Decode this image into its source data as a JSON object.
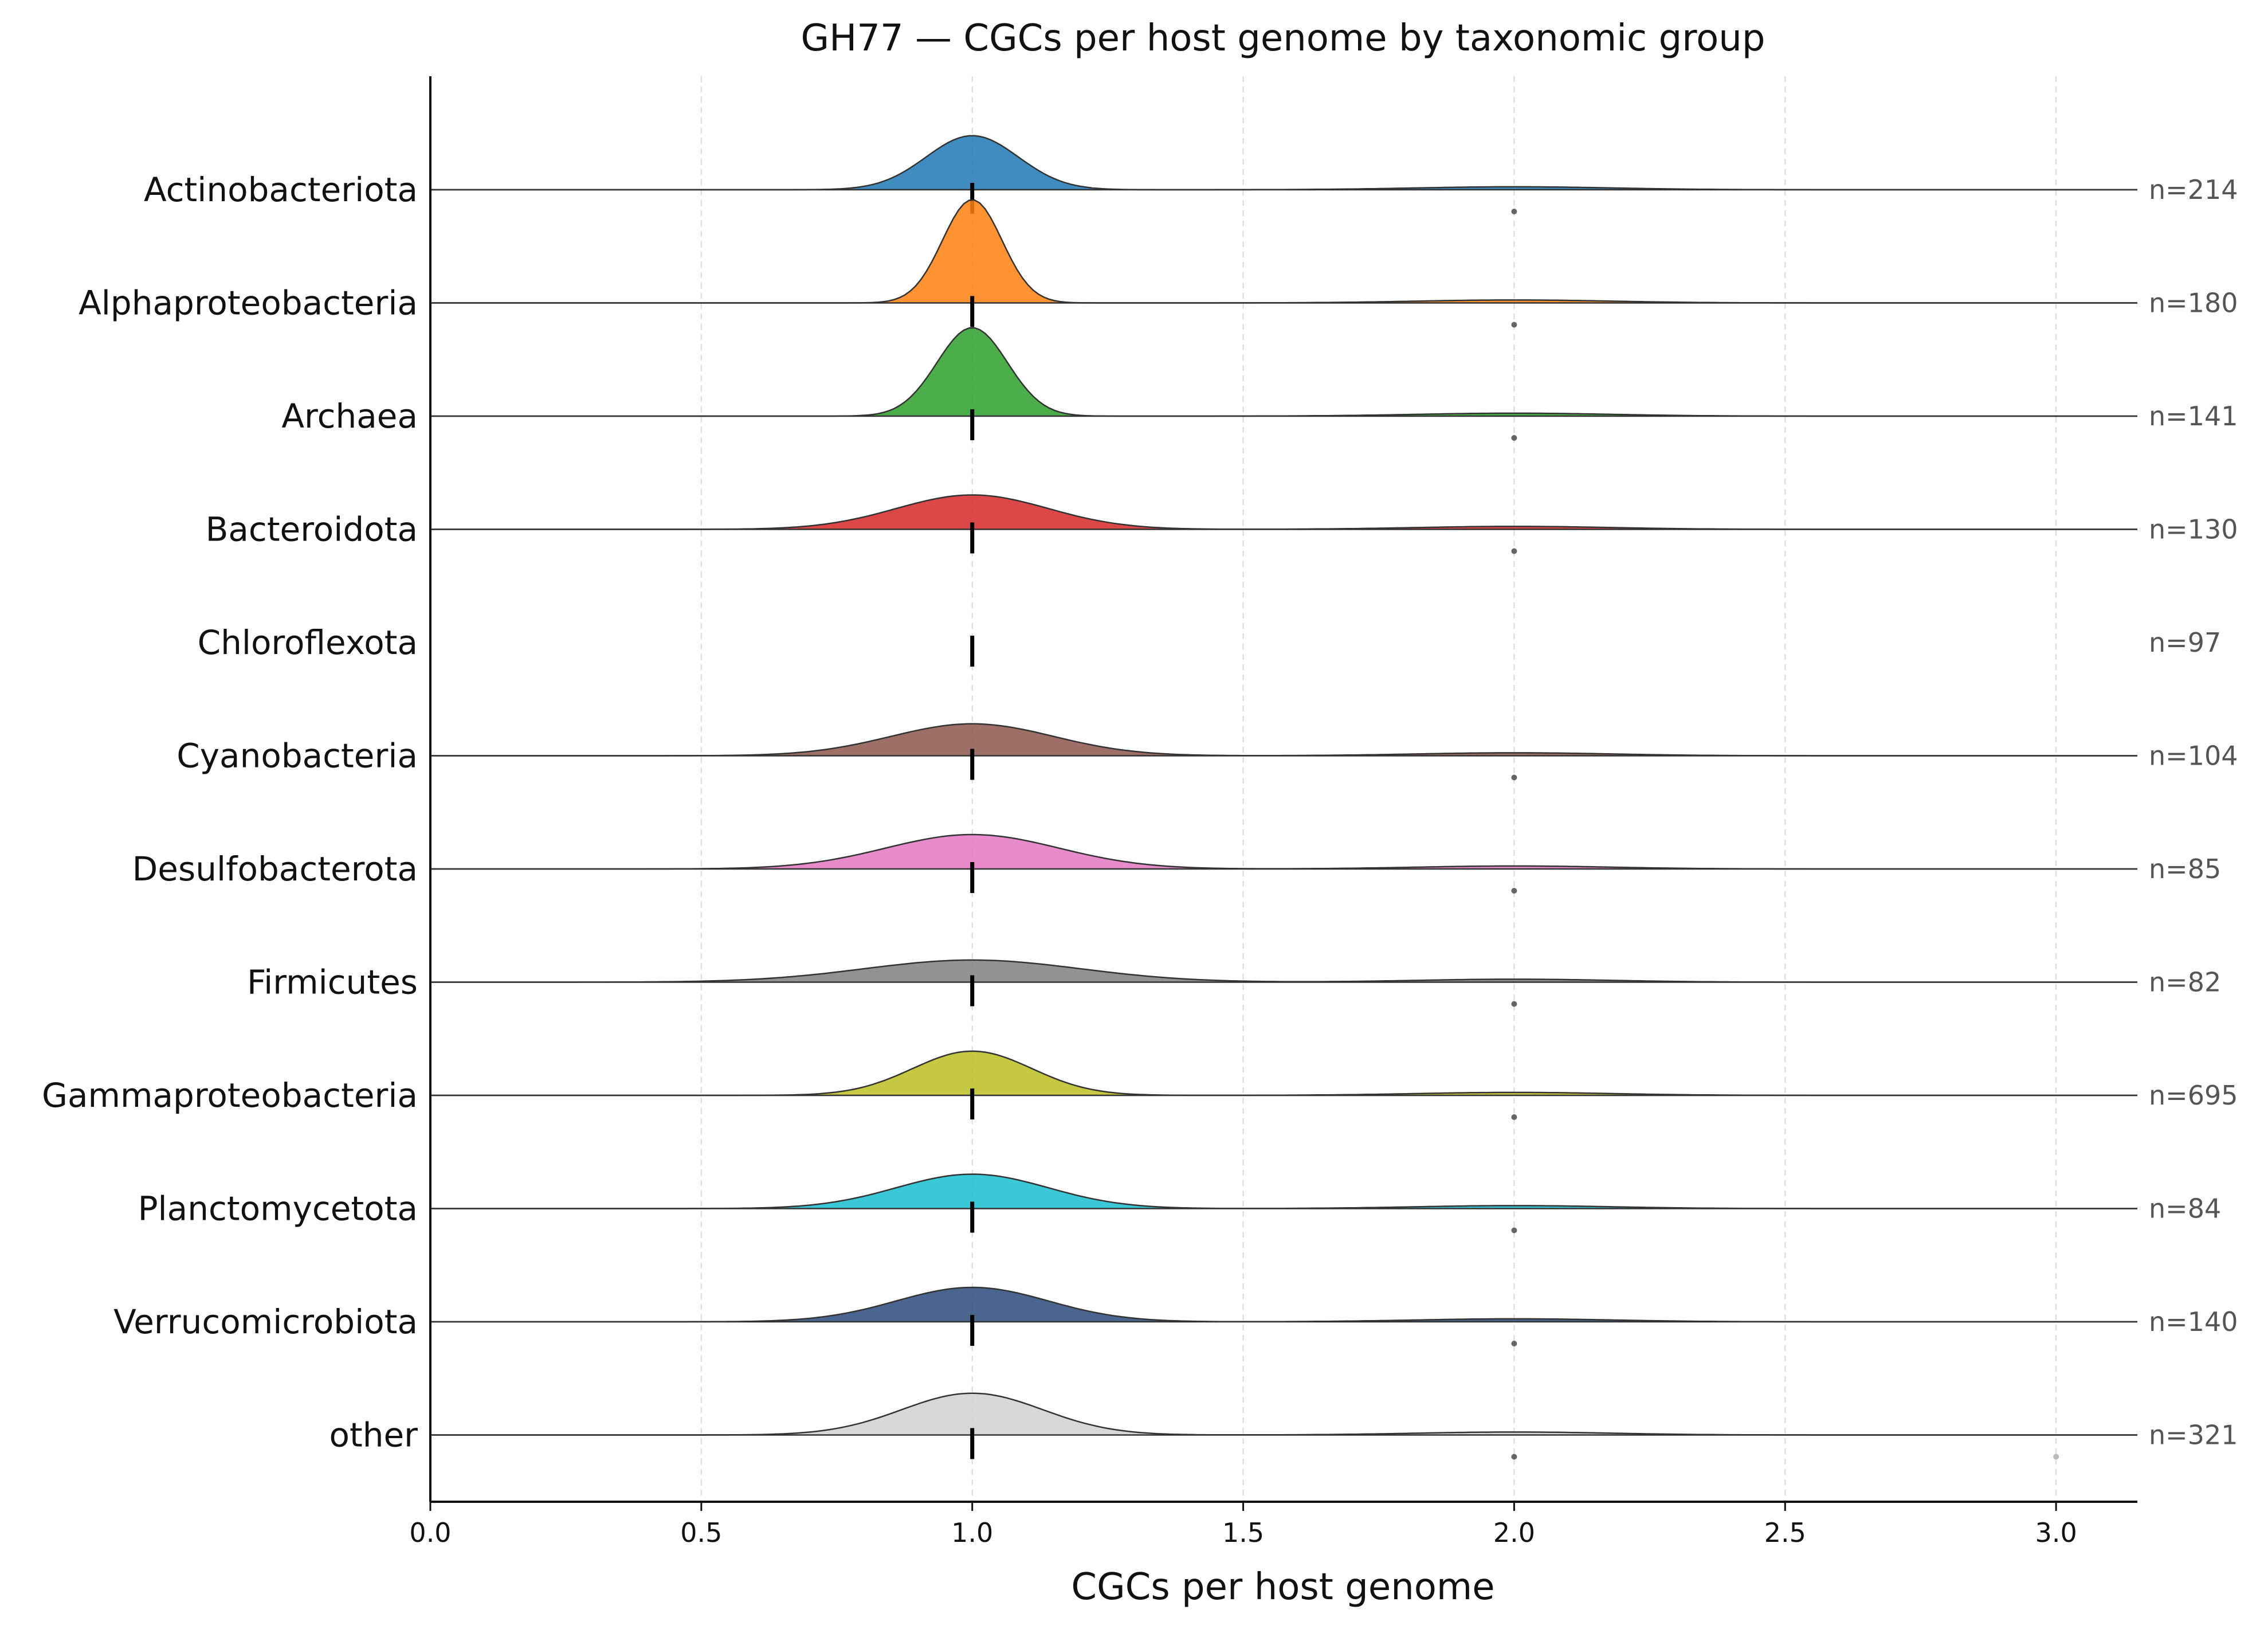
{
  "chart_data": {
    "type": "ridgeline",
    "title": "GH77 — CGCs per host genome by taxonomic group",
    "xlabel": "CGCs per host genome",
    "ylabel": "",
    "xlim": [
      0.0,
      3.15
    ],
    "x_ticks": [
      0.0,
      0.5,
      1.0,
      1.5,
      2.0,
      2.5,
      3.0
    ],
    "x_tick_labels": [
      "0.0",
      "0.5",
      "1.0",
      "1.5",
      "2.0",
      "2.5",
      "3.0"
    ],
    "grid": "vertical dashed at x ticks",
    "median_marker": "black vertical tick",
    "outlier_marker": "small grey dots",
    "groups": [
      {
        "name": "Actinobacteriota",
        "n_label": "n=214",
        "color": "#1f77b4",
        "median": 1.0,
        "density_peak": 1.0,
        "density_height": 0.22,
        "density_width": 0.085,
        "outliers": [
          2.0
        ]
      },
      {
        "name": "Alphaproteobacteria",
        "n_label": "n=180",
        "color": "#ff7f0e",
        "median": 1.0,
        "density_peak": 1.0,
        "density_height": 0.42,
        "density_width": 0.055,
        "outliers": [
          2.0
        ]
      },
      {
        "name": "Archaea",
        "n_label": "n=141",
        "color": "#2ca02c",
        "median": 1.0,
        "density_peak": 1.0,
        "density_height": 0.36,
        "density_width": 0.065,
        "outliers": [
          2.0
        ]
      },
      {
        "name": "Bacteroidota",
        "n_label": "n=130",
        "color": "#d62728",
        "median": 1.0,
        "density_peak": 1.0,
        "density_height": 0.14,
        "density_width": 0.14,
        "outliers": [
          2.0
        ]
      },
      {
        "name": "Chloroflexota",
        "n_label": "n=97",
        "color": "#9467bd",
        "median": 1.0,
        "density_peak": 1.0,
        "density_height": 0.0,
        "density_width": 0.0,
        "outliers": []
      },
      {
        "name": "Cyanobacteria",
        "n_label": "n=104",
        "color": "#8c564b",
        "median": 1.0,
        "density_peak": 1.0,
        "density_height": 0.13,
        "density_width": 0.15,
        "outliers": [
          2.0
        ]
      },
      {
        "name": "Desulfobacterota",
        "n_label": "n=85",
        "color": "#e377c2",
        "median": 1.0,
        "density_peak": 1.0,
        "density_height": 0.14,
        "density_width": 0.16,
        "outliers": [
          2.0
        ]
      },
      {
        "name": "Firmicutes",
        "n_label": "n=82",
        "color": "#7f7f7f",
        "median": 1.0,
        "density_peak": 1.0,
        "density_height": 0.09,
        "density_width": 0.2,
        "outliers": [
          2.0
        ]
      },
      {
        "name": "Gammaproteobacteria",
        "n_label": "n=695",
        "color": "#bcbd22",
        "median": 1.0,
        "density_peak": 1.0,
        "density_height": 0.18,
        "density_width": 0.11,
        "outliers": [
          2.0
        ]
      },
      {
        "name": "Planctomycetota",
        "n_label": "n=84",
        "color": "#17becf",
        "median": 1.0,
        "density_peak": 1.0,
        "density_height": 0.14,
        "density_width": 0.14,
        "outliers": [
          2.0
        ]
      },
      {
        "name": "Verrucomicrobiota",
        "n_label": "n=140",
        "color": "#2b4a7e",
        "median": 1.0,
        "density_peak": 1.0,
        "density_height": 0.14,
        "density_width": 0.14,
        "outliers": [
          2.0
        ]
      },
      {
        "name": "other",
        "n_label": "n=321",
        "color": "#d0d0d0",
        "median": 1.0,
        "density_peak": 1.0,
        "density_height": 0.17,
        "density_width": 0.13,
        "outliers": [
          2.0,
          3.0
        ]
      }
    ]
  }
}
